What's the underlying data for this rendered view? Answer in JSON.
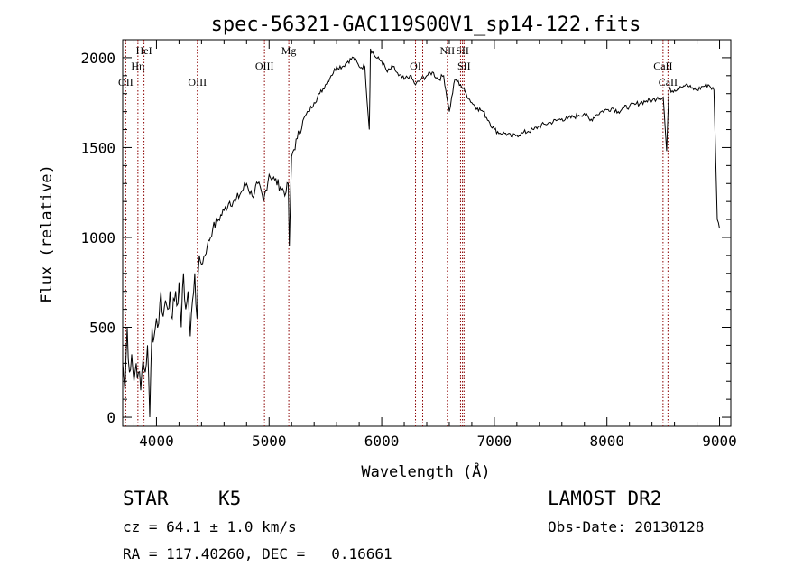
{
  "chart_data": {
    "type": "line",
    "title": "spec-56321-GAC119S00V1_sp14-122.fits",
    "xlabel": "Wavelength (Å)",
    "ylabel": "Flux (relative)",
    "xlim": [
      3700,
      9100
    ],
    "ylim": [
      -50,
      2100
    ],
    "xticks": [
      4000,
      5000,
      6000,
      7000,
      8000,
      9000
    ],
    "yticks": [
      0,
      500,
      1000,
      1500,
      2000
    ],
    "series": [
      {
        "x": [
          3700,
          3720,
          3740,
          3760,
          3780,
          3800,
          3820,
          3840,
          3860,
          3880,
          3900,
          3920,
          3940,
          3960,
          3980,
          4000,
          4020,
          4040,
          4060,
          4080,
          4100,
          4120,
          4140,
          4160,
          4180,
          4200,
          4220,
          4240,
          4260,
          4280,
          4300,
          4320,
          4340,
          4360,
          4380,
          4400,
          4450,
          4500,
          4550,
          4600,
          4650,
          4700,
          4750,
          4800,
          4850,
          4900,
          4950,
          5000,
          5050,
          5100,
          5150,
          5170,
          5180,
          5200,
          5250,
          5300,
          5350,
          5400,
          5450,
          5500,
          5550,
          5600,
          5650,
          5700,
          5750,
          5800,
          5850,
          5890,
          5900,
          5950,
          6000,
          6050,
          6100,
          6150,
          6200,
          6250,
          6300,
          6350,
          6400,
          6450,
          6500,
          6550,
          6600,
          6650,
          6700,
          6750,
          6800,
          6850,
          6900,
          6950,
          7000,
          7050,
          7100,
          7150,
          7200,
          7250,
          7300,
          7350,
          7400,
          7450,
          7500,
          7550,
          7600,
          7650,
          7700,
          7750,
          7800,
          7850,
          7900,
          7950,
          8000,
          8050,
          8100,
          8150,
          8200,
          8250,
          8300,
          8350,
          8400,
          8450,
          8500,
          8530,
          8550,
          8600,
          8650,
          8700,
          8750,
          8800,
          8850,
          8900,
          8950,
          8980,
          9000
        ],
        "values": [
          300,
          150,
          500,
          250,
          350,
          200,
          300,
          250,
          150,
          320,
          250,
          400,
          0,
          500,
          450,
          550,
          520,
          700,
          560,
          650,
          600,
          700,
          550,
          650,
          620,
          750,
          500,
          800,
          600,
          700,
          450,
          650,
          800,
          550,
          900,
          850,
          950,
          1050,
          1100,
          1150,
          1200,
          1200,
          1250,
          1300,
          1230,
          1300,
          1200,
          1350,
          1320,
          1280,
          1250,
          1300,
          950,
          1450,
          1550,
          1650,
          1700,
          1750,
          1800,
          1850,
          1900,
          1950,
          1950,
          1980,
          2000,
          1950,
          1950,
          1600,
          2050,
          2000,
          1980,
          1920,
          1950,
          1900,
          1880,
          1900,
          1850,
          1880,
          1900,
          1920,
          1880,
          1900,
          1700,
          1880,
          1850,
          1800,
          1750,
          1720,
          1700,
          1650,
          1600,
          1580,
          1580,
          1560,
          1570,
          1580,
          1590,
          1600,
          1620,
          1630,
          1640,
          1650,
          1660,
          1660,
          1670,
          1680,
          1690,
          1650,
          1680,
          1700,
          1710,
          1720,
          1700,
          1720,
          1730,
          1740,
          1750,
          1760,
          1760,
          1780,
          1780,
          1480,
          1820,
          1820,
          1840,
          1850,
          1830,
          1820,
          1840,
          1850,
          1820,
          1100,
          1050
        ]
      }
    ],
    "lines": [
      {
        "label": "OII",
        "x": 3727,
        "row": 2
      },
      {
        "label": "Hη",
        "x": 3835,
        "row": 1
      },
      {
        "label": "HeI",
        "x": 3889,
        "row": 0
      },
      {
        "label": "OIII",
        "x": 4363,
        "row": 2
      },
      {
        "label": "OIII",
        "x": 4959,
        "row": 1
      },
      {
        "label": "Mg",
        "x": 5175,
        "row": 0
      },
      {
        "label": "OI",
        "x": 6300,
        "row": 1
      },
      {
        "label": "",
        "x": 6364,
        "row": 2
      },
      {
        "label": "NII",
        "x": 6583,
        "row": 0
      },
      {
        "label": "SII",
        "x": 6717,
        "row": 0
      },
      {
        "label": "SII",
        "x": 6731,
        "row": 1
      },
      {
        "label": "",
        "x": 6700,
        "row": 2
      },
      {
        "label": "CaII",
        "x": 8498,
        "row": 1
      },
      {
        "label": "CaII",
        "x": 8542,
        "row": 2
      }
    ]
  },
  "footer": {
    "class": "STAR",
    "subclass": "K5",
    "cz": "cz = 64.1 ± 1.0 km/s",
    "coords": "RA = 117.40260, DEC =   0.16661",
    "survey": "LAMOST DR2",
    "obs_date": "Obs-Date: 20130128"
  }
}
